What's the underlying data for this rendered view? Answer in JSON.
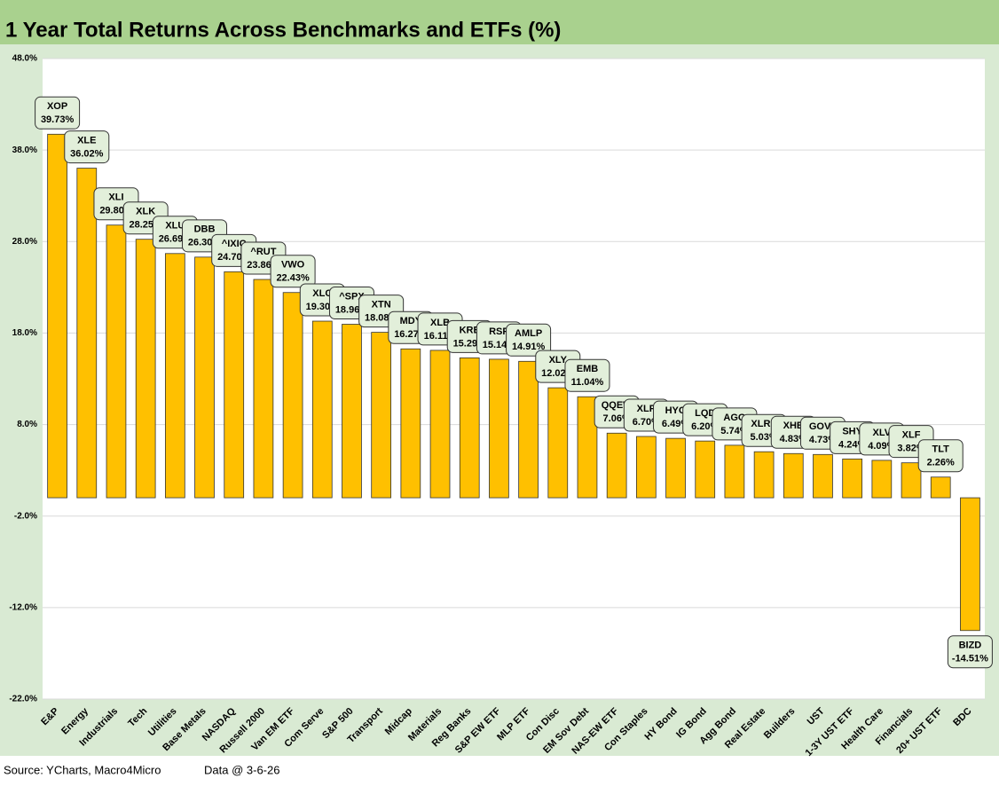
{
  "chart_data": {
    "type": "bar",
    "title": "1 Year Total Returns Across Benchmarks and ETFs (%)",
    "categories": [
      "E&P",
      "Energy",
      "Industrials",
      "Tech",
      "Utilities",
      "Base Metals",
      "NASDAQ",
      "Russell 2000",
      "Van EM ETF",
      "Com Serve",
      "S&P 500",
      "Transport",
      "Midcap",
      "Materials",
      "Reg Banks",
      "S&P EW ETF",
      "MLP ETF",
      "Con Disc",
      "EM Sov Debt",
      "NAS-EW ETF",
      "Con Staples",
      "HY Bond",
      "IG Bond",
      "Agg Bond",
      "Real Estate",
      "Builders",
      "UST",
      "1-3Y UST ETF",
      "Health Care",
      "Financials",
      "20+ UST ETF",
      "BDC"
    ],
    "tickers": [
      "XOP",
      "XLE",
      "XLI",
      "XLK",
      "XLU",
      "DBB",
      "^IXIC",
      "^RUT",
      "VWO",
      "XLC",
      "^SPX",
      "XTN",
      "MDY",
      "XLB",
      "KRE",
      "RSP",
      "AMLP",
      "XLY",
      "EMB",
      "QQEW",
      "XLP",
      "HYG",
      "LQD",
      "AGG",
      "XLRE",
      "XHB",
      "GOVT",
      "SHY",
      "XLV",
      "XLF",
      "TLT",
      "BIZD"
    ],
    "values": [
      39.73,
      36.02,
      29.8,
      28.25,
      26.69,
      26.3,
      24.7,
      23.86,
      22.43,
      19.3,
      18.96,
      18.08,
      16.27,
      16.11,
      15.29,
      15.14,
      14.91,
      12.02,
      11.04,
      7.06,
      6.7,
      6.49,
      6.2,
      5.74,
      5.03,
      4.83,
      4.73,
      4.24,
      4.09,
      3.82,
      2.26,
      -14.51
    ],
    "value_labels": [
      "39.73%",
      "36.02%",
      "29.80%",
      "28.25%",
      "26.69%",
      "26.30%",
      "24.70%",
      "23.86%",
      "22.43%",
      "19.30%",
      "18.96%",
      "18.08%",
      "16.27%",
      "16.11%",
      "15.29%",
      "15.14%",
      "14.91%",
      "12.02%",
      "11.04%",
      "7.06%",
      "6.70%",
      "6.49%",
      "6.20%",
      "5.74%",
      "5.03%",
      "4.83%",
      "4.73%",
      "4.24%",
      "4.09%",
      "3.82%",
      "2.26%",
      "-14.51%"
    ],
    "color": "#ffc000",
    "ylim": [
      -22,
      48
    ],
    "yticks": [
      {
        "value": -22,
        "label": "-22.0%"
      },
      {
        "value": -12,
        "label": "-12.0%"
      },
      {
        "value": -2,
        "label": "-2.0%"
      },
      {
        "value": 8,
        "label": "8.0%"
      },
      {
        "value": 18,
        "label": "18.0%"
      },
      {
        "value": 28,
        "label": "28.0%"
      },
      {
        "value": 38,
        "label": "38.0%"
      },
      {
        "value": 48,
        "label": "48.0%"
      }
    ],
    "grid": true,
    "source": "Source: YCharts, Macro4Micro",
    "data_note": "Data @ 3-6-26"
  }
}
